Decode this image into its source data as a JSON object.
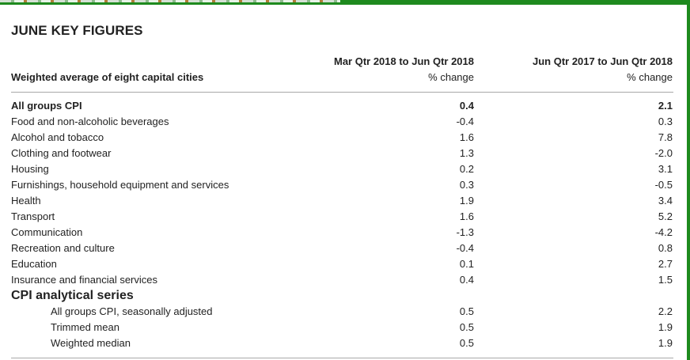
{
  "title": "JUNE KEY FIGURES",
  "header": {
    "row_label": "Weighted average of eight capital cities",
    "col1_title": "Mar Qtr 2018 to Jun Qtr 2018",
    "col1_unit": "% change",
    "col2_title": "Jun Qtr 2017 to Jun Qtr 2018",
    "col2_unit": "% change"
  },
  "rows": [
    {
      "label": "All groups CPI",
      "q": "0.4",
      "y": "2.1"
    },
    {
      "label": "Food and non-alcoholic beverages",
      "q": "-0.4",
      "y": "0.3"
    },
    {
      "label": "Alcohol and tobacco",
      "q": "1.6",
      "y": "7.8"
    },
    {
      "label": "Clothing and footwear",
      "q": "1.3",
      "y": "-2.0"
    },
    {
      "label": "Housing",
      "q": "0.2",
      "y": "3.1"
    },
    {
      "label": "Furnishings, household equipment and services",
      "q": "0.3",
      "y": "-0.5"
    },
    {
      "label": "Health",
      "q": "1.9",
      "y": "3.4"
    },
    {
      "label": "Transport",
      "q": "1.6",
      "y": "5.2"
    },
    {
      "label": "Communication",
      "q": "-1.3",
      "y": "-4.2"
    },
    {
      "label": "Recreation and culture",
      "q": "-0.4",
      "y": "0.8"
    },
    {
      "label": "Education",
      "q": "0.1",
      "y": "2.7"
    },
    {
      "label": "Insurance and financial services",
      "q": "0.4",
      "y": "1.5"
    }
  ],
  "analytical": {
    "heading": "CPI analytical series",
    "rows": [
      {
        "label": "All groups CPI, seasonally adjusted",
        "q": "0.5",
        "y": "2.2"
      },
      {
        "label": "Trimmed mean",
        "q": "0.5",
        "y": "1.9"
      },
      {
        "label": "Weighted median",
        "q": "0.5",
        "y": "1.9"
      }
    ]
  }
}
